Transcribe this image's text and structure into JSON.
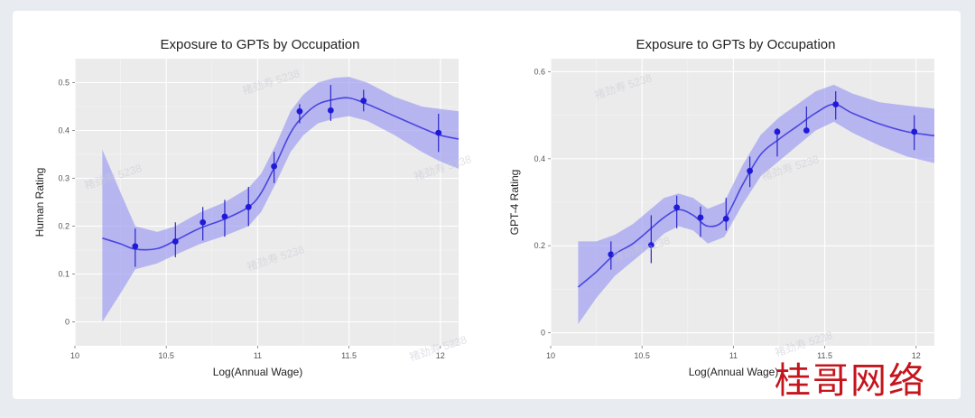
{
  "watermark": {
    "text": "褚劲寿 5238",
    "logo_text": "桂哥网络",
    "logo_color": "#c4151c"
  },
  "chart_data": [
    {
      "type": "line",
      "title": "Exposure to GPTs by Occupation",
      "xlabel": "Log(Annual Wage)",
      "ylabel": "Human Rating",
      "xlim": [
        10,
        12.1
      ],
      "ylim": [
        -0.05,
        0.55
      ],
      "xticks": [
        10,
        10.5,
        11,
        11.5,
        12
      ],
      "xtick_labels": [
        "10",
        "10.5",
        "11",
        "11.5",
        "12"
      ],
      "yticks": [
        0,
        0.1,
        0.2,
        0.3,
        0.4,
        0.5
      ],
      "ytick_labels": [
        "0",
        "0.1",
        "0.2",
        "0.3",
        "0.4",
        "0.5"
      ],
      "grid": true,
      "line_color": "#4a46e0",
      "band_color": "#9a98f2",
      "point_color": "#1f1ad8",
      "smooth": {
        "x": [
          10.15,
          10.25,
          10.33,
          10.45,
          10.55,
          10.68,
          10.82,
          10.95,
          11.02,
          11.1,
          11.18,
          11.25,
          11.33,
          11.42,
          11.5,
          11.6,
          11.75,
          11.9,
          12.0,
          12.1
        ],
        "y": [
          0.175,
          0.163,
          0.152,
          0.153,
          0.17,
          0.195,
          0.215,
          0.24,
          0.27,
          0.33,
          0.395,
          0.43,
          0.455,
          0.465,
          0.468,
          0.455,
          0.43,
          0.405,
          0.39,
          0.382
        ],
        "lower": [
          0.0,
          0.06,
          0.11,
          0.122,
          0.14,
          0.162,
          0.18,
          0.2,
          0.23,
          0.29,
          0.355,
          0.39,
          0.415,
          0.425,
          0.43,
          0.42,
          0.39,
          0.355,
          0.335,
          0.32
        ],
        "upper": [
          0.36,
          0.27,
          0.2,
          0.188,
          0.2,
          0.228,
          0.25,
          0.28,
          0.31,
          0.37,
          0.44,
          0.475,
          0.5,
          0.51,
          0.512,
          0.5,
          0.47,
          0.45,
          0.445,
          0.44
        ]
      },
      "points": [
        {
          "x": 10.33,
          "y": 0.158,
          "lo": 0.115,
          "hi": 0.195
        },
        {
          "x": 10.55,
          "y": 0.168,
          "lo": 0.135,
          "hi": 0.208
        },
        {
          "x": 10.7,
          "y": 0.208,
          "lo": 0.17,
          "hi": 0.24
        },
        {
          "x": 10.82,
          "y": 0.22,
          "lo": 0.178,
          "hi": 0.255
        },
        {
          "x": 10.95,
          "y": 0.24,
          "lo": 0.2,
          "hi": 0.282
        },
        {
          "x": 11.09,
          "y": 0.325,
          "lo": 0.29,
          "hi": 0.355
        },
        {
          "x": 11.23,
          "y": 0.44,
          "lo": 0.415,
          "hi": 0.455
        },
        {
          "x": 11.4,
          "y": 0.442,
          "lo": 0.42,
          "hi": 0.495
        },
        {
          "x": 11.58,
          "y": 0.462,
          "lo": 0.44,
          "hi": 0.485
        },
        {
          "x": 11.99,
          "y": 0.395,
          "lo": 0.355,
          "hi": 0.435
        }
      ]
    },
    {
      "type": "line",
      "title": "Exposure to GPTs by Occupation",
      "xlabel": "Log(Annual Wage)",
      "ylabel": "GPT-4 Rating",
      "xlim": [
        10,
        12.1
      ],
      "ylim": [
        -0.03,
        0.63
      ],
      "xticks": [
        10,
        10.5,
        11,
        11.5,
        12
      ],
      "xtick_labels": [
        "10",
        "10.5",
        "11",
        "11.5",
        "12"
      ],
      "yticks": [
        0,
        0.2,
        0.4,
        0.6
      ],
      "ytick_labels": [
        "0",
        "0.2",
        "0.4",
        "0.6"
      ],
      "grid": true,
      "line_color": "#4a46e0",
      "band_color": "#9a98f2",
      "point_color": "#1f1ad8",
      "smooth": {
        "x": [
          10.15,
          10.25,
          10.35,
          10.45,
          10.55,
          10.62,
          10.7,
          10.78,
          10.86,
          10.95,
          11.05,
          11.15,
          11.25,
          11.35,
          11.45,
          11.55,
          11.65,
          11.8,
          11.95,
          12.1
        ],
        "y": [
          0.105,
          0.14,
          0.18,
          0.205,
          0.24,
          0.265,
          0.283,
          0.27,
          0.245,
          0.26,
          0.34,
          0.41,
          0.445,
          0.475,
          0.505,
          0.525,
          0.505,
          0.48,
          0.462,
          0.453
        ],
        "lower": [
          0.02,
          0.08,
          0.13,
          0.165,
          0.2,
          0.228,
          0.245,
          0.235,
          0.205,
          0.22,
          0.295,
          0.36,
          0.395,
          0.43,
          0.465,
          0.485,
          0.46,
          0.43,
          0.405,
          0.39
        ],
        "upper": [
          0.21,
          0.21,
          0.225,
          0.25,
          0.285,
          0.31,
          0.32,
          0.31,
          0.285,
          0.3,
          0.385,
          0.455,
          0.495,
          0.525,
          0.555,
          0.57,
          0.55,
          0.53,
          0.522,
          0.515
        ]
      },
      "points": [
        {
          "x": 10.33,
          "y": 0.18,
          "lo": 0.145,
          "hi": 0.21
        },
        {
          "x": 10.55,
          "y": 0.202,
          "lo": 0.16,
          "hi": 0.27
        },
        {
          "x": 10.69,
          "y": 0.288,
          "lo": 0.24,
          "hi": 0.315
        },
        {
          "x": 10.82,
          "y": 0.265,
          "lo": 0.22,
          "hi": 0.29
        },
        {
          "x": 10.96,
          "y": 0.262,
          "lo": 0.235,
          "hi": 0.31
        },
        {
          "x": 11.09,
          "y": 0.372,
          "lo": 0.335,
          "hi": 0.405
        },
        {
          "x": 11.24,
          "y": 0.462,
          "lo": 0.405,
          "hi": 0.47
        },
        {
          "x": 11.4,
          "y": 0.465,
          "lo": 0.46,
          "hi": 0.52
        },
        {
          "x": 11.56,
          "y": 0.525,
          "lo": 0.49,
          "hi": 0.555
        },
        {
          "x": 11.99,
          "y": 0.462,
          "lo": 0.42,
          "hi": 0.5
        }
      ]
    }
  ]
}
